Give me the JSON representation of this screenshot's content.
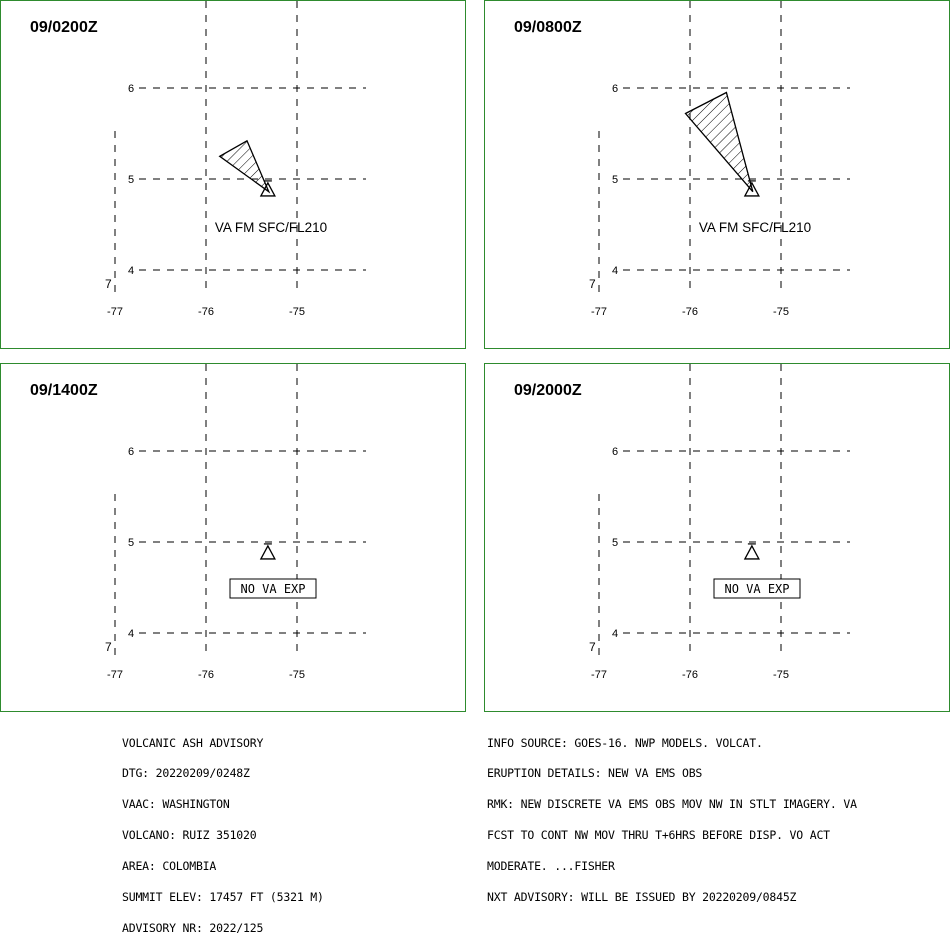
{
  "panels": [
    {
      "time": "09/0200Z",
      "label": "VA FM SFC/FL210",
      "noexp": "",
      "plume": [
        [
          -75.85,
          5.25
        ],
        [
          -75.55,
          5.42
        ],
        [
          -75.31,
          4.86
        ]
      ]
    },
    {
      "time": "09/0800Z",
      "label": "VA FM SFC/FL210",
      "noexp": "",
      "plume": [
        [
          -76.05,
          5.72
        ],
        [
          -75.6,
          5.95
        ],
        [
          -75.31,
          4.86
        ]
      ]
    },
    {
      "time": "09/1400Z",
      "label": "",
      "noexp": "NO VA EXP",
      "plume": []
    },
    {
      "time": "09/2000Z",
      "label": "",
      "noexp": "NO VA EXP",
      "plume": []
    }
  ],
  "axes": {
    "lat_ticks": [
      "6",
      "5",
      "4"
    ],
    "lon_ticks": [
      "-77",
      "-76",
      "-75"
    ],
    "corner_mark": "7"
  },
  "volcano": {
    "lon": -75.32,
    "lat": 4.88,
    "symbol": "volcano-triangle"
  },
  "colors": {
    "border": "#2e8b2e",
    "plume_fill": "hatched"
  },
  "info_left": [
    "VOLCANIC ASH ADVISORY",
    "DTG: 20220209/0248Z",
    "VAAC: WASHINGTON",
    "VOLCANO: RUIZ 351020",
    "AREA: COLOMBIA",
    "SUMMIT ELEV: 17457 FT (5321 M)",
    "ADVISORY NR: 2022/125"
  ],
  "info_right": [
    "INFO SOURCE: GOES-16. NWP MODELS. VOLCAT.",
    "ERUPTION DETAILS: NEW VA EMS OBS",
    "RMK: NEW DISCRETE VA EMS OBS MOV NW IN STLT IMAGERY. VA",
    "FCST TO CONT NW MOV THRU T+6HRS BEFORE DISP. VO ACT",
    "MODERATE. ...FISHER",
    "NXT ADVISORY: WILL BE ISSUED BY 20220209/0845Z"
  ]
}
